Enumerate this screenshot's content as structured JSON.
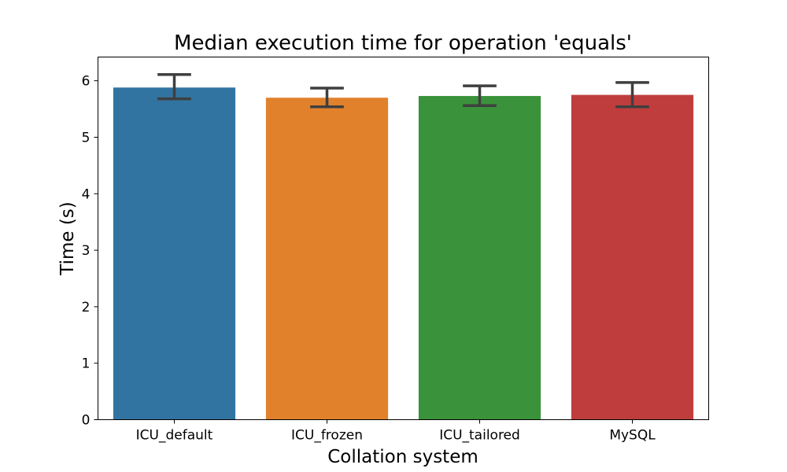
{
  "chart_data": {
    "type": "bar",
    "title": "Median execution time for operation 'equals'",
    "xlabel": "Collation system",
    "ylabel": "Time (s)",
    "categories": [
      "ICU_default",
      "ICU_frozen",
      "ICU_tailored",
      "MySQL"
    ],
    "values": [
      5.88,
      5.7,
      5.73,
      5.75
    ],
    "error_low": [
      5.68,
      5.54,
      5.56,
      5.54
    ],
    "error_high": [
      6.11,
      5.87,
      5.91,
      5.97
    ],
    "colors": [
      "#3274a1",
      "#e1812c",
      "#3a923a",
      "#c03d3e"
    ],
    "ylim": [
      0,
      6.42
    ],
    "yticks": [
      0,
      1,
      2,
      3,
      4,
      5,
      6
    ],
    "grid": false,
    "legend": "none"
  }
}
